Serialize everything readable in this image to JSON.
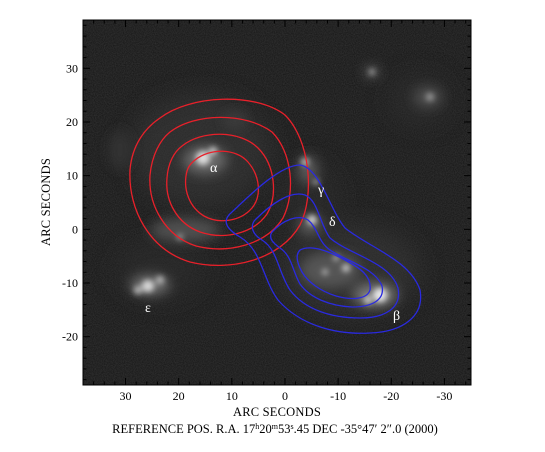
{
  "axes": {
    "x_title": "ARC SECONDS",
    "y_title": "ARC SECONDS",
    "x_ticks": [
      "30",
      "20",
      "10",
      "0",
      "-10",
      "-20",
      "-30"
    ],
    "y_ticks": [
      "30",
      "20",
      "10",
      "0",
      "-10",
      "-20"
    ],
    "x_range": [
      38,
      -35
    ],
    "y_range": [
      -29,
      39
    ]
  },
  "labels": {
    "alpha": "α",
    "beta": "β",
    "gamma": "γ",
    "delta": "δ",
    "epsilon": "ε"
  },
  "caption": {
    "prefix": "REFERENCE POS.  R.A. 17",
    "ra_h": "h",
    "ra_min_val": "20",
    "ra_m": "m",
    "ra_sec_int": "53",
    "ra_s": "s",
    "ra_sec_frac": ".45",
    "dec_prefix": "  DEC  -35°47′ 2",
    "dec_arcsec_mark": "″",
    "dec_frac": ".0  (2000)"
  },
  "colors": {
    "red_contours": "#e8202a",
    "blue_contours": "#2a2ae0",
    "background_image": "#151515"
  }
}
